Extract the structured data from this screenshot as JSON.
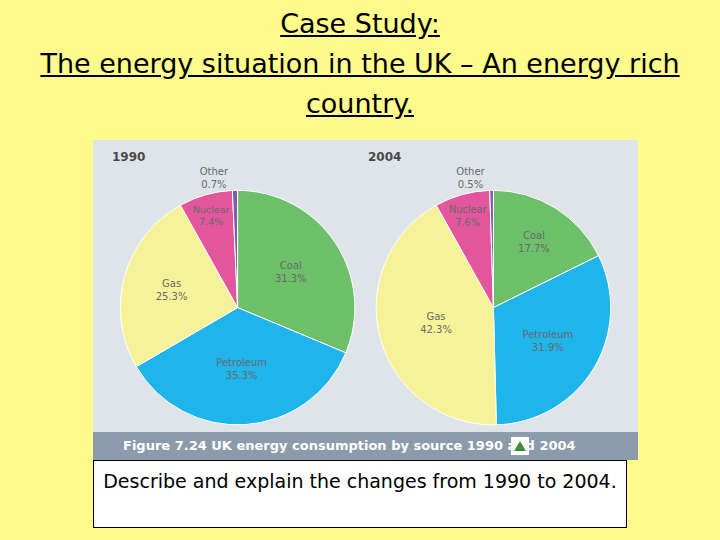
{
  "slide": {
    "heading": [
      "Case Study:",
      "The energy situation in the UK – An energy rich country."
    ],
    "caption": "Figure 7.24 UK energy consumption by source 1990 and 2004",
    "question": "Describe and explain the changes from 1990 to 2004."
  },
  "chart_data": [
    {
      "type": "pie",
      "title": "1990",
      "categories": [
        "Coal",
        "Petroleum",
        "Gas",
        "Nuclear",
        "Other"
      ],
      "values": [
        31.3,
        35.3,
        25.3,
        7.4,
        0.7
      ],
      "value_labels": [
        "31.3%",
        "35.3%",
        "25.3%",
        "7.4%",
        "0.7%"
      ],
      "colors": [
        "#6cc06a",
        "#1fb4ea",
        "#f6f29a",
        "#e2579b",
        "#7b5ea8"
      ],
      "data_labels": true
    },
    {
      "type": "pie",
      "title": "2004",
      "categories": [
        "Coal",
        "Petroleum",
        "Gas",
        "Nuclear",
        "Other"
      ],
      "values": [
        17.7,
        31.9,
        42.3,
        7.6,
        0.5
      ],
      "value_labels": [
        "17.7%",
        "31.9%",
        "42.3%",
        "7.6%",
        "0.5%"
      ],
      "colors": [
        "#6cc06a",
        "#1fb4ea",
        "#f6f29a",
        "#e2579b",
        "#7b5ea8"
      ],
      "data_labels": true
    }
  ]
}
